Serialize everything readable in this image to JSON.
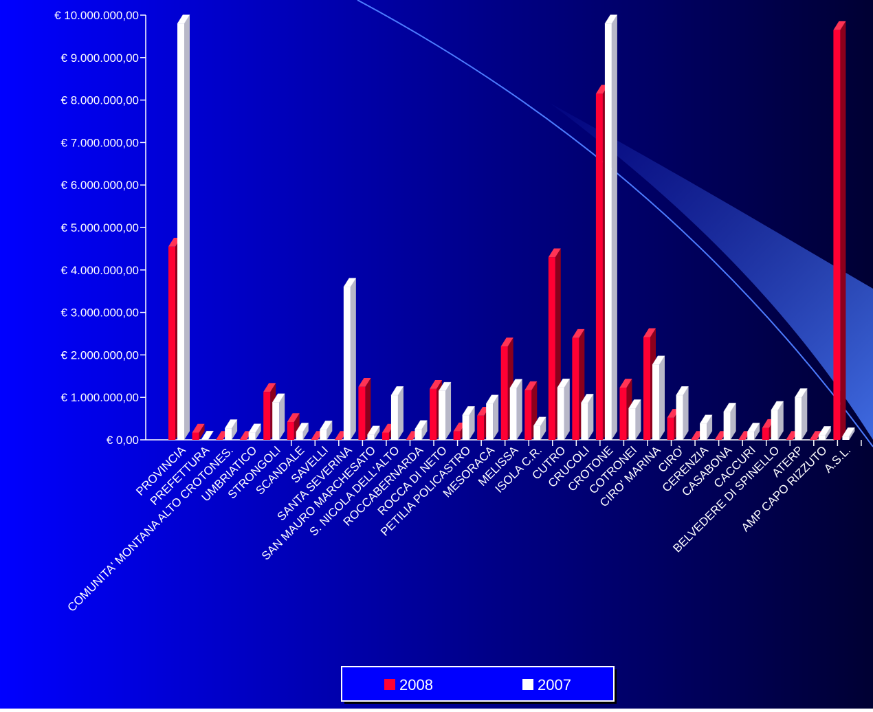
{
  "chart_data": {
    "type": "bar",
    "categories": [
      "PROVINCIA",
      "PREFETTURA",
      "COMUNITA' MONTANA ALTO CROTONES.",
      "UMBRIATICO",
      "STRONGOLI",
      "SCANDALE",
      "SAVELLI",
      "SANTA SEVERINA",
      "SAN MAURO MARCHESATO",
      "S. NICOLA DELL'ALTO",
      "ROCCABERNARDA",
      "ROCCA DI NETO",
      "PETILIA POLICASTRO",
      "MESORACA",
      "MELISSA",
      "ISOLA C.R.",
      "CUTRO",
      "CRUCOLI",
      "CROTONE",
      "COTRONEI",
      "CIRO' MARINA",
      "CIRO'",
      "CERENZIA",
      "CASABONA",
      "CACCURI",
      "BELVEDERE DI SPINELLO",
      "ATERP",
      "AMP CAPO RIZZUTO",
      "A.S.L."
    ],
    "series": [
      {
        "name": "2008",
        "color": "#ff0033",
        "values": [
          4550000,
          170000,
          0,
          0,
          1130000,
          420000,
          0,
          0,
          1250000,
          170000,
          0,
          1200000,
          200000,
          570000,
          2200000,
          1170000,
          4300000,
          2400000,
          8150000,
          1230000,
          2420000,
          520000,
          0,
          0,
          0,
          280000,
          0,
          0,
          9650000
        ]
      },
      {
        "name": "2007",
        "color": "#ffffff",
        "values": [
          9800000,
          0,
          270000,
          170000,
          880000,
          190000,
          240000,
          3600000,
          120000,
          1050000,
          250000,
          1150000,
          580000,
          850000,
          1220000,
          330000,
          1230000,
          870000,
          9800000,
          740000,
          1770000,
          1050000,
          380000,
          660000,
          190000,
          700000,
          1000000,
          110000,
          80000
        ]
      }
    ],
    "yticks": [
      "€ 0,00",
      "€ 1.000.000,00",
      "€ 2.000.000,00",
      "€ 3.000.000,00",
      "€ 4.000.000,00",
      "€ 5.000.000,00",
      "€ 6.000.000,00",
      "€ 7.000.000,00",
      "€ 8.000.000,00",
      "€ 9.000.000,00",
      "€ 10.000.000,00"
    ],
    "ylim": [
      0,
      10000000
    ],
    "legend": {
      "position": "bottom",
      "entries": [
        "2008",
        "2007"
      ]
    },
    "grid": false,
    "background": {
      "from": "#0000ff",
      "to": "#000033"
    }
  }
}
